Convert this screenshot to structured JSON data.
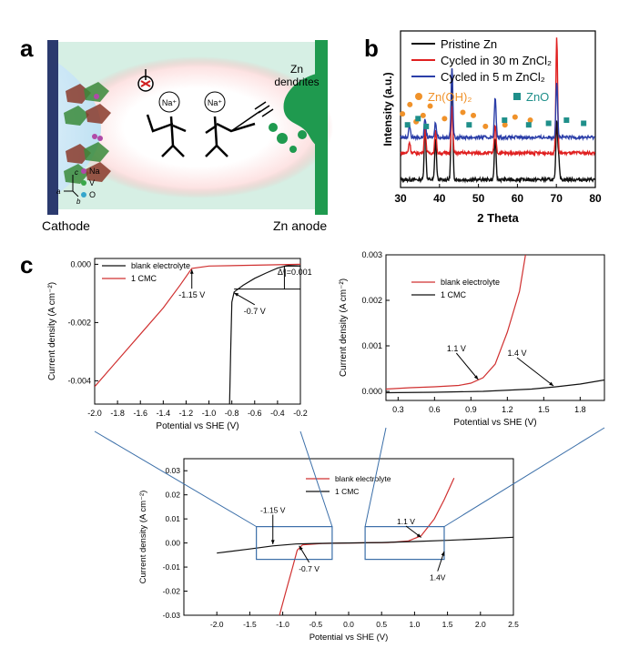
{
  "panel_a": {
    "letter": "a",
    "cathode_label": "Cathode",
    "anode_label": "Zn anode",
    "dendrite_label_line1": "Zn",
    "dendrite_label_line2": "dendrites",
    "ion_left": "Na⁺",
    "ion_right": "Na⁺",
    "legend": [
      "Na",
      "V",
      "O"
    ],
    "axes": {
      "c": "c",
      "a": "a",
      "b": "b"
    },
    "colors": {
      "bg": "#d6efe4",
      "cathode": "#2b3a6e",
      "anode": "#1f9a4f",
      "sodium": "#b04aa8",
      "vanadium": "#3aa84a",
      "oxygen": "#35a6cc"
    }
  },
  "chart_data": [
    {
      "id": "b",
      "type": "line",
      "letter": "b",
      "xlabel": "2 Theta",
      "ylabel": "Intensity (a.u.)",
      "xlim": [
        30,
        80
      ],
      "xticks": [
        30,
        40,
        50,
        60,
        70,
        80
      ],
      "series": [
        {
          "name": "Pristine Zn",
          "color": "#111111",
          "baseline": 0.05,
          "peaks": [
            [
              36.3,
              0.36
            ],
            [
              39.0,
              0.26
            ],
            [
              43.2,
              0.7
            ],
            [
              54.3,
              0.26
            ],
            [
              70.1,
              0.36
            ],
            [
              70.6,
              0.14
            ]
          ]
        },
        {
          "name": "Cycled in 30 m ZnCl₂",
          "color": "#e02020",
          "baseline": 0.22,
          "peaks": [
            [
              32.3,
              0.07
            ],
            [
              36.3,
              0.17
            ],
            [
              39.0,
              0.14
            ],
            [
              43.2,
              0.3
            ],
            [
              54.3,
              0.18
            ],
            [
              70.1,
              0.73
            ]
          ]
        },
        {
          "name": "Cycled in 5 m ZnCl₂",
          "color": "#2b3ea8",
          "baseline": 0.32,
          "peaks": [
            [
              32.3,
              0.08
            ],
            [
              36.3,
              0.12
            ],
            [
              39.0,
              0.1
            ],
            [
              43.2,
              0.45
            ],
            [
              54.3,
              0.25
            ],
            [
              70.1,
              0.36
            ]
          ]
        }
      ],
      "markers_legend": [
        {
          "name": "Zn(OH)₂",
          "color": "#f0922a",
          "shape": "circle"
        },
        {
          "name": "ZnO",
          "color": "#1f8f8a",
          "shape": "square"
        }
      ],
      "markers": {
        "Zn(OH)₂": [
          [
            30.5,
            0.47
          ],
          [
            32.4,
            0.53
          ],
          [
            34.0,
            0.42
          ],
          [
            35.8,
            0.46
          ],
          [
            37.6,
            0.52
          ],
          [
            41.3,
            0.44
          ],
          [
            46.0,
            0.48
          ],
          [
            48.7,
            0.46
          ],
          [
            51.8,
            0.39
          ],
          [
            56.8,
            0.4
          ],
          [
            59.4,
            0.45
          ],
          [
            63.3,
            0.43
          ]
        ],
        "ZnO": [
          [
            31.8,
            0.4
          ],
          [
            34.5,
            0.44
          ],
          [
            36.6,
            0.39
          ],
          [
            47.6,
            0.4
          ],
          [
            56.7,
            0.43
          ],
          [
            62.9,
            0.4
          ],
          [
            68.0,
            0.41
          ],
          [
            72.6,
            0.43
          ],
          [
            77.0,
            0.41
          ]
        ]
      }
    },
    {
      "id": "c_left",
      "type": "line",
      "xlabel": "Potential vs SHE (V)",
      "ylabel": "Current density (A cm⁻²)",
      "xlim": [
        -2.0,
        -0.2
      ],
      "ylim": [
        -0.0048,
        0.0002
      ],
      "xticks": [
        -2.0,
        -1.8,
        -1.6,
        -1.4,
        -1.2,
        -1.0,
        -0.8,
        -0.6,
        -0.4,
        -0.2
      ],
      "xtick_labels": [
        "-2.0",
        "-1.8",
        "-1.6",
        "-1.4",
        "-1.2",
        "-1.0",
        "-0.8",
        "-0.6",
        "-0.4",
        "-0.2"
      ],
      "yticks": [
        0.0,
        -0.002,
        -0.004
      ],
      "ytick_labels": [
        "0.000",
        "-0.002",
        "-0.004"
      ],
      "legend": [
        "blank electrolyte",
        "1 CMC"
      ],
      "series": [
        {
          "name": "blank electrolyte",
          "color": "#111111",
          "points": [
            [
              -0.82,
              -0.0048
            ],
            [
              -0.81,
              -0.003
            ],
            [
              -0.8,
              -0.0013
            ],
            [
              -0.78,
              -0.00095
            ],
            [
              -0.7,
              -0.00072
            ],
            [
              -0.6,
              -0.00048
            ],
            [
              -0.5,
              -0.0003
            ],
            [
              -0.4,
              -0.00013
            ],
            [
              -0.3,
              -3e-05
            ],
            [
              -0.2,
              -1e-05
            ]
          ]
        },
        {
          "name": "1 CMC",
          "color": "#d03030",
          "points": [
            [
              -2.0,
              -0.0042
            ],
            [
              -1.8,
              -0.0033
            ],
            [
              -1.6,
              -0.0024
            ],
            [
              -1.4,
              -0.0015
            ],
            [
              -1.25,
              -0.0007
            ],
            [
              -1.15,
              -0.00014
            ],
            [
              -1.0,
              -6e-05
            ],
            [
              -0.6,
              -3e-05
            ],
            [
              -0.2,
              0.0
            ]
          ]
        }
      ],
      "annotations": [
        {
          "text": "-1.15 V",
          "tx": -1.15,
          "ty": -0.00115,
          "px": -1.15,
          "py": -0.00018
        },
        {
          "text": "-0.7 V",
          "tx": -0.6,
          "ty": -0.0017,
          "px": -0.78,
          "py": -0.00098
        },
        {
          "text": "Δⁱ|=0.001",
          "tx": -0.25,
          "ty": -0.00036
        }
      ]
    },
    {
      "id": "c_right",
      "type": "line",
      "xlabel": "Potential vs SHE (V)",
      "ylabel": "Current density (A cm⁻²)",
      "xlim": [
        0.2,
        2.0
      ],
      "ylim": [
        -0.0002,
        0.003
      ],
      "xticks": [
        0.3,
        0.6,
        0.9,
        1.2,
        1.5,
        1.8
      ],
      "xtick_labels": [
        "0.3",
        "0.6",
        "0.9",
        "1.2",
        "1.5",
        "1.8"
      ],
      "yticks": [
        0.0,
        0.001,
        0.002,
        0.003
      ],
      "ytick_labels": [
        "0.000",
        "0.001",
        "0.002",
        "0.003"
      ],
      "legend": [
        "blank electrolyte",
        "1 CMC"
      ],
      "series": [
        {
          "name": "blank electrolyte",
          "color": "#d03030",
          "points": [
            [
              0.2,
              5e-05
            ],
            [
              0.4,
              8e-05
            ],
            [
              0.6,
              0.0001
            ],
            [
              0.8,
              0.00013
            ],
            [
              0.9,
              0.00018
            ],
            [
              1.0,
              0.0003
            ],
            [
              1.1,
              0.0006
            ],
            [
              1.2,
              0.0013
            ],
            [
              1.3,
              0.0022
            ],
            [
              1.35,
              0.003
            ]
          ]
        },
        {
          "name": "1 CMC",
          "color": "#111111",
          "points": [
            [
              0.2,
              -3e-05
            ],
            [
              0.6,
              -2e-05
            ],
            [
              1.0,
              0.0
            ],
            [
              1.4,
              5e-05
            ],
            [
              1.6,
              0.0001
            ],
            [
              1.8,
              0.00016
            ],
            [
              2.0,
              0.00025
            ]
          ]
        }
      ],
      "annotations": [
        {
          "text": "1.1 V",
          "tx": 0.78,
          "ty": 0.00088,
          "px": 0.96,
          "py": 0.00026
        },
        {
          "text": "1.4 V",
          "tx": 1.28,
          "ty": 0.00078,
          "px": 1.58,
          "py": 0.00012
        }
      ]
    },
    {
      "id": "c_bottom",
      "type": "line",
      "xlabel": "Potential vs SHE (V)",
      "ylabel": "Current density (A cm⁻²)",
      "xlim": [
        -2.5,
        2.5
      ],
      "ylim": [
        -0.03,
        0.035
      ],
      "xticks": [
        -2.0,
        -1.5,
        -1.0,
        -0.5,
        0.0,
        0.5,
        1.0,
        1.5,
        2.0,
        2.5
      ],
      "xtick_labels": [
        "-2.0",
        "-1.5",
        "-1.0",
        "-0.5",
        "0.0",
        "0.5",
        "1.0",
        "1.5",
        "2.0",
        "2.5"
      ],
      "yticks": [
        -0.03,
        -0.02,
        -0.01,
        0.0,
        0.01,
        0.02,
        0.03
      ],
      "ytick_labels": [
        "-0.03",
        "-0.02",
        "-0.01",
        "0.00",
        "0.01",
        "0.02",
        "0.03"
      ],
      "legend": [
        "blank electrolyte",
        "1 CMC"
      ],
      "series": [
        {
          "name": "blank electrolyte",
          "color": "#d03030",
          "points": [
            [
              -1.05,
              -0.03
            ],
            [
              -0.95,
              -0.02
            ],
            [
              -0.85,
              -0.01
            ],
            [
              -0.78,
              -0.003
            ],
            [
              -0.7,
              -0.0008
            ],
            [
              -0.4,
              -0.0002
            ],
            [
              0.0,
              0.0
            ],
            [
              0.6,
              0.0002
            ],
            [
              0.9,
              0.0008
            ],
            [
              1.1,
              0.003
            ],
            [
              1.3,
              0.01
            ],
            [
              1.45,
              0.018
            ],
            [
              1.6,
              0.027
            ]
          ]
        },
        {
          "name": "1 CMC",
          "color": "#111111",
          "points": [
            [
              -2.0,
              -0.0042
            ],
            [
              -1.5,
              -0.0025
            ],
            [
              -1.15,
              -0.0012
            ],
            [
              -0.8,
              -0.0004
            ],
            [
              -0.5,
              -0.0002
            ],
            [
              0.0,
              0.0
            ],
            [
              0.5,
              0.0002
            ],
            [
              1.0,
              0.0006
            ],
            [
              1.5,
              0.0011
            ],
            [
              2.0,
              0.0017
            ],
            [
              2.5,
              0.0024
            ]
          ]
        }
      ],
      "zoom_boxes": [
        {
          "x": [
            -1.4,
            -0.25
          ],
          "y": [
            -0.0068,
            0.0068
          ]
        },
        {
          "x": [
            0.25,
            1.45
          ],
          "y": [
            -0.0068,
            0.0068
          ]
        }
      ],
      "annotations": [
        {
          "text": "-1.15 V",
          "tx": -1.15,
          "ty": 0.0125,
          "px": -1.15,
          "py": -0.0005
        },
        {
          "text": "-0.7 V",
          "tx": -0.6,
          "ty": -0.0118,
          "px": -0.75,
          "py": -0.0012
        },
        {
          "text": "1.1 V",
          "tx": 0.87,
          "ty": 0.0078,
          "px": 1.1,
          "py": 0.0023
        },
        {
          "text": "1.4V",
          "tx": 1.35,
          "ty": -0.0155,
          "px": 1.45,
          "py": -0.0035
        }
      ]
    }
  ],
  "panel_c_letter": "c"
}
